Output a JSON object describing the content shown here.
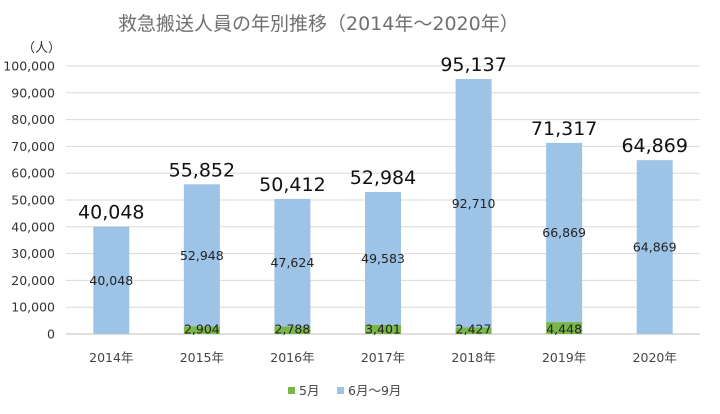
{
  "chart_data": {
    "type": "bar",
    "stacked": true,
    "title": "救急搬送人員の年別推移（2014年～2020年）",
    "ylabel": "（人）",
    "xlabel": "",
    "ylim": [
      0,
      100000
    ],
    "yticks": [
      "0",
      "10,000",
      "20,000",
      "30,000",
      "40,000",
      "50,000",
      "60,000",
      "70,000",
      "80,000",
      "90,000",
      "100,000"
    ],
    "grid": true,
    "legend_position": "bottom",
    "categories": [
      "2014年",
      "2015年",
      "2016年",
      "2017年",
      "2018年",
      "2019年",
      "2020年"
    ],
    "series": [
      {
        "name": "5月",
        "color": "#7ab648",
        "values": [
          0,
          2904,
          2788,
          3401,
          2427,
          4448,
          0
        ],
        "labels": [
          "",
          "2,904",
          "2,788",
          "3,401",
          "2,427",
          "4,448",
          ""
        ]
      },
      {
        "name": "6月～9月",
        "color": "#9dc3e6",
        "values": [
          40048,
          52948,
          47624,
          49583,
          92710,
          66869,
          64869
        ],
        "labels": [
          "40,048",
          "52,948",
          "47,624",
          "49,583",
          "92,710",
          "66,869",
          "64,869"
        ]
      }
    ],
    "totals": [
      "40,048",
      "55,852",
      "50,412",
      "52,984",
      "95,137",
      "71,317",
      "64,869"
    ]
  }
}
